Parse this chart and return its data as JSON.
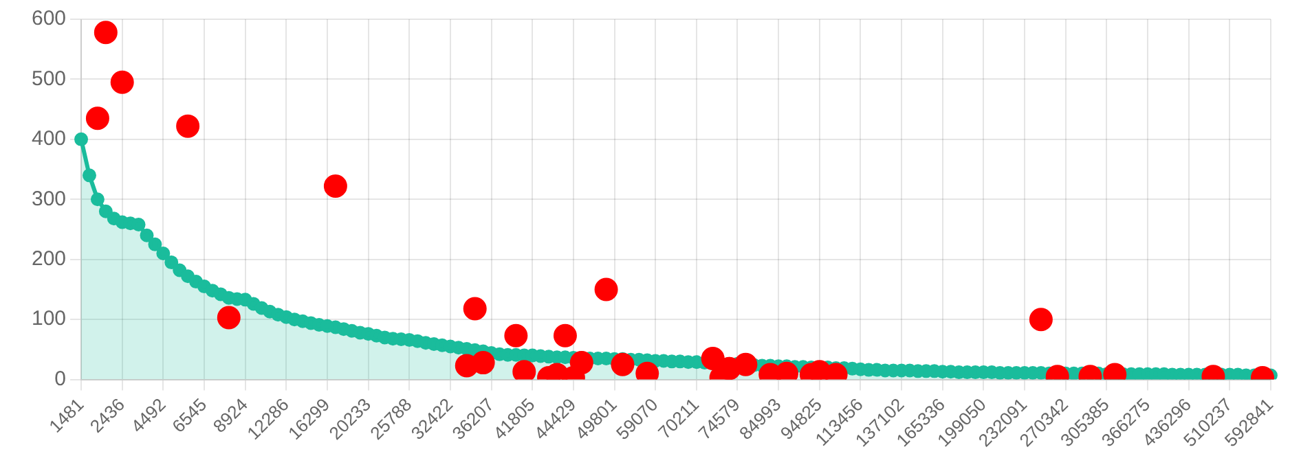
{
  "chart_data": {
    "type": "area",
    "categories": [
      "1481",
      null,
      null,
      null,
      null,
      "2436",
      null,
      null,
      null,
      null,
      "4492",
      null,
      null,
      null,
      null,
      "6545",
      null,
      null,
      null,
      null,
      "8924",
      null,
      null,
      null,
      null,
      "12286",
      null,
      null,
      null,
      null,
      "16299",
      null,
      null,
      null,
      null,
      "20233",
      null,
      null,
      null,
      null,
      "25788",
      null,
      null,
      null,
      null,
      "32422",
      null,
      null,
      null,
      null,
      "36207",
      null,
      null,
      null,
      null,
      "41805",
      null,
      null,
      null,
      null,
      "44429",
      null,
      null,
      null,
      null,
      "49801",
      null,
      null,
      null,
      null,
      "59070",
      null,
      null,
      null,
      null,
      "70211",
      null,
      null,
      null,
      null,
      "74579",
      null,
      null,
      null,
      null,
      "84993",
      null,
      null,
      null,
      null,
      "94825",
      null,
      null,
      null,
      null,
      "113456",
      null,
      null,
      null,
      null,
      "137102",
      null,
      null,
      null,
      null,
      "165336",
      null,
      null,
      null,
      null,
      "199050",
      null,
      null,
      null,
      null,
      "232091",
      null,
      null,
      null,
      null,
      "270342",
      null,
      null,
      null,
      null,
      "305385",
      null,
      null,
      null,
      null,
      "366275",
      null,
      null,
      null,
      null,
      "436296",
      null,
      null,
      null,
      null,
      "510237",
      null,
      null,
      null,
      null,
      "592841"
    ],
    "series": [
      {
        "type": "area",
        "color": "#1abc9c",
        "values": [
          400,
          340,
          300,
          280,
          268,
          262,
          260,
          258,
          240,
          225,
          210,
          195,
          182,
          172,
          163,
          155,
          148,
          142,
          136,
          134,
          133,
          126,
          119,
          113,
          108,
          104,
          100,
          97,
          94,
          91,
          89,
          87,
          84,
          81,
          78,
          76,
          73,
          70,
          68,
          67,
          66,
          64,
          61,
          59,
          57,
          55,
          53,
          51,
          49,
          47,
          44,
          42,
          41,
          41,
          40,
          40,
          39,
          38,
          37,
          37,
          36,
          36,
          35,
          35,
          35,
          34,
          34,
          33,
          33,
          32,
          31,
          31,
          30,
          30,
          29,
          29,
          28,
          27,
          26,
          26,
          26,
          25,
          24,
          23,
          23,
          22,
          22,
          21,
          21,
          20,
          20,
          20,
          19,
          19,
          18,
          17,
          16,
          16,
          15,
          15,
          15,
          15,
          14,
          14,
          14,
          13,
          13,
          12,
          12,
          12,
          12,
          12,
          11,
          11,
          11,
          11,
          11,
          11,
          10,
          10,
          10,
          10,
          10,
          10,
          10,
          9,
          9,
          9,
          9,
          9,
          9,
          9,
          9,
          8,
          8,
          8,
          8,
          8,
          8,
          8,
          8,
          8,
          7,
          7,
          7,
          7
        ]
      },
      {
        "type": "scatter",
        "color": "#ff0000",
        "values": [
          null,
          null,
          435,
          578,
          null,
          495,
          null,
          null,
          null,
          null,
          null,
          null,
          null,
          422,
          null,
          null,
          null,
          null,
          103,
          null,
          null,
          null,
          null,
          null,
          null,
          null,
          null,
          null,
          null,
          null,
          null,
          322,
          null,
          null,
          null,
          null,
          null,
          null,
          null,
          null,
          null,
          null,
          null,
          null,
          null,
          null,
          null,
          23,
          118,
          28,
          null,
          null,
          null,
          73,
          13,
          null,
          null,
          3,
          8,
          73,
          3,
          28,
          null,
          null,
          150,
          null,
          25,
          null,
          null,
          10,
          null,
          null,
          null,
          null,
          null,
          null,
          null,
          35,
          3,
          18,
          null,
          25,
          null,
          null,
          8,
          null,
          10,
          null,
          null,
          8,
          13,
          null,
          8,
          null,
          null,
          null,
          null,
          null,
          null,
          null,
          null,
          null,
          null,
          null,
          null,
          null,
          null,
          null,
          null,
          null,
          null,
          null,
          null,
          null,
          null,
          null,
          null,
          100,
          null,
          5,
          null,
          null,
          null,
          5,
          null,
          null,
          8,
          null,
          null,
          null,
          null,
          null,
          null,
          null,
          null,
          null,
          null,
          null,
          5,
          null,
          null,
          null,
          null,
          null,
          3,
          null
        ]
      }
    ],
    "ylim": [
      0,
      600
    ],
    "yticks": [
      0,
      100,
      200,
      300,
      400,
      500,
      600
    ],
    "grid": true,
    "marker": "circle"
  }
}
